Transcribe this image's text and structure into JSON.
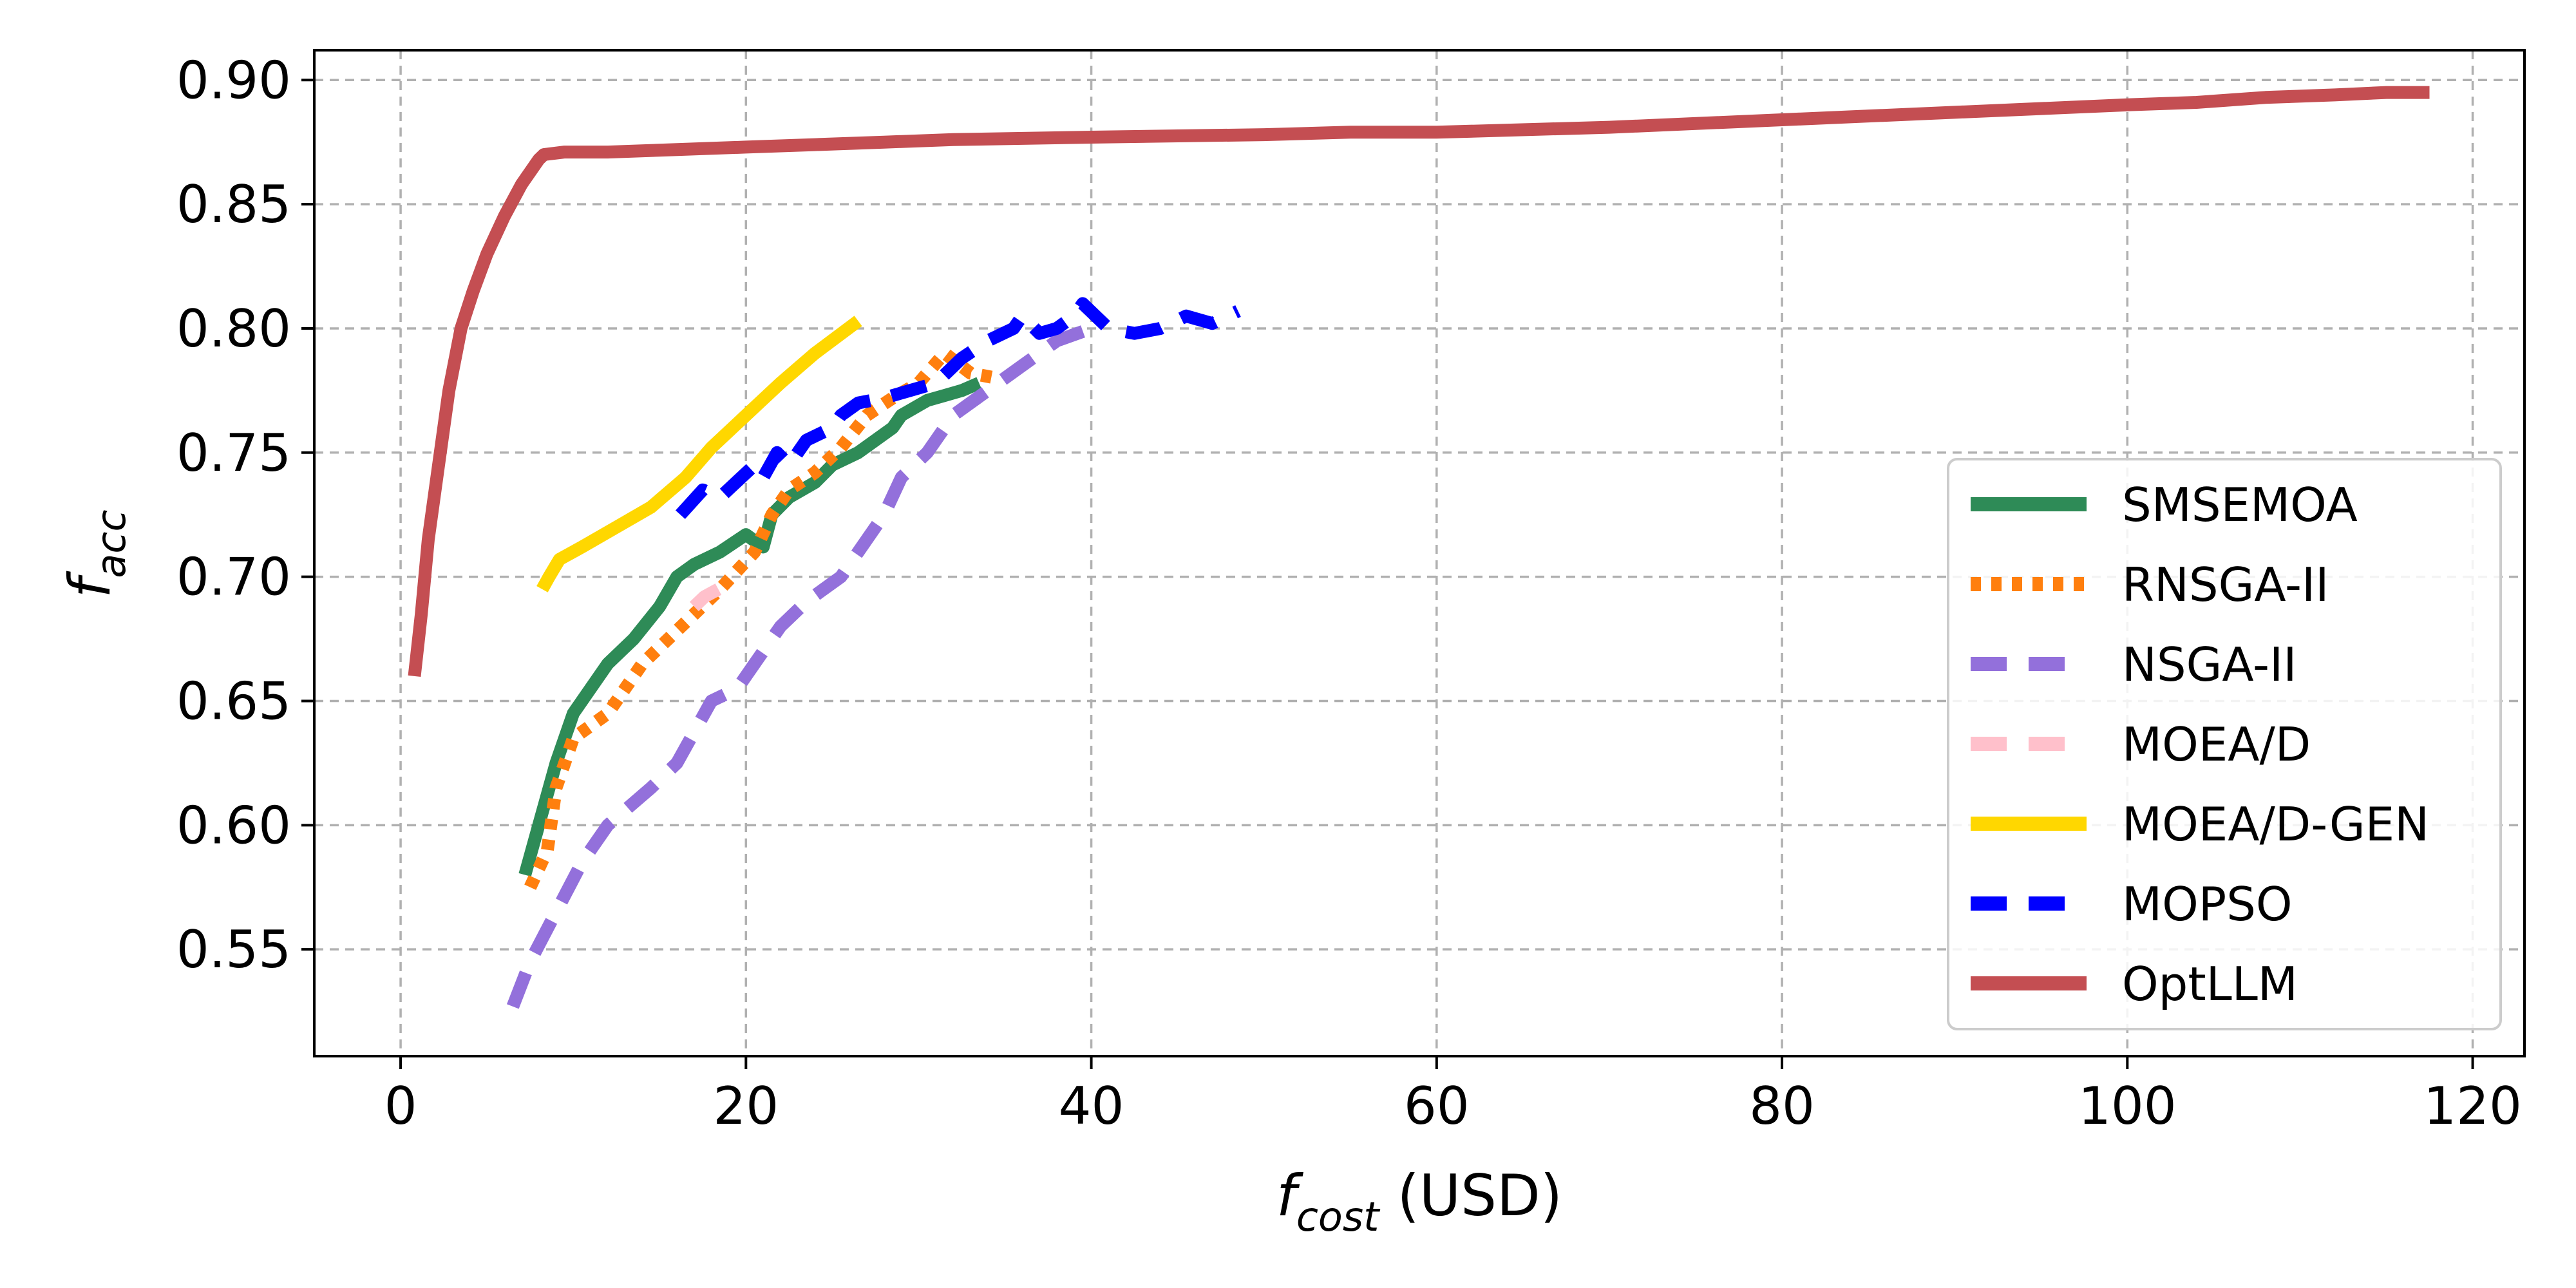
{
  "chart_data": {
    "type": "line",
    "xlabel": {
      "main": "f",
      "sub": "cost",
      "unit": " (USD)"
    },
    "ylabel": {
      "main": "f",
      "sub": "acc"
    },
    "xlim": [
      -5,
      123
    ],
    "ylim": [
      0.507,
      0.912
    ],
    "x_ticks": [
      0,
      20,
      40,
      60,
      80,
      100,
      120
    ],
    "y_ticks": [
      0.55,
      0.6,
      0.65,
      0.7,
      0.75,
      0.8,
      0.85,
      0.9
    ],
    "x_tick_labels": [
      "0",
      "20",
      "40",
      "60",
      "80",
      "100",
      "120"
    ],
    "y_tick_labels": [
      "0.55",
      "0.60",
      "0.65",
      "0.70",
      "0.75",
      "0.80",
      "0.85",
      "0.90"
    ],
    "grid": true,
    "legend_position": "lower-right",
    "series": [
      {
        "name": "SMSEMOA",
        "color": "#2e8b57",
        "style": "solid",
        "x": [
          7.2,
          7.6,
          8.2,
          9.0,
          10.0,
          12.0,
          13.5,
          15.0,
          16.0,
          17.0,
          18.5,
          20.0,
          21.0,
          21.5,
          22.5,
          24.0,
          25.0,
          26.5,
          27.5,
          28.5,
          29.0,
          30.5,
          31.5,
          32.5,
          33.5
        ],
        "y": [
          0.58,
          0.59,
          0.605,
          0.625,
          0.645,
          0.665,
          0.675,
          0.688,
          0.7,
          0.705,
          0.71,
          0.717,
          0.712,
          0.725,
          0.732,
          0.738,
          0.745,
          0.75,
          0.755,
          0.76,
          0.765,
          0.771,
          0.773,
          0.775,
          0.778
        ]
      },
      {
        "name": "RNSGA-II",
        "color": "#ff7f0e",
        "style": "dotted",
        "x": [
          7.5,
          8.5,
          9.0,
          10.0,
          12.0,
          13.0,
          14.0,
          15.5,
          17.0,
          18.5,
          20.5,
          21.5,
          22.5,
          24.0,
          25.5,
          27.0,
          28.5,
          30.0,
          31.5,
          33.0,
          34.5
        ],
        "y": [
          0.575,
          0.59,
          0.615,
          0.635,
          0.645,
          0.655,
          0.665,
          0.675,
          0.685,
          0.695,
          0.71,
          0.725,
          0.735,
          0.742,
          0.752,
          0.765,
          0.772,
          0.778,
          0.79,
          0.782,
          0.78
        ]
      },
      {
        "name": "NSGA-II",
        "color": "#9370db",
        "style": "dashed",
        "x": [
          6.5,
          7.5,
          9.0,
          10.5,
          12.0,
          14.5,
          16.0,
          18.0,
          19.5,
          20.5,
          22.0,
          23.5,
          24.5,
          25.5,
          26.5,
          28.0,
          29.0,
          30.5,
          32.0,
          34.0,
          36.0,
          38.0,
          40.0
        ],
        "y": [
          0.527,
          0.545,
          0.565,
          0.585,
          0.6,
          0.615,
          0.625,
          0.65,
          0.655,
          0.665,
          0.68,
          0.69,
          0.695,
          0.7,
          0.71,
          0.725,
          0.74,
          0.75,
          0.765,
          0.775,
          0.785,
          0.795,
          0.8
        ]
      },
      {
        "name": "MOEA/D",
        "color": "#ffc0cb",
        "style": "dashed",
        "x": [
          17.0,
          17.6,
          18.4
        ],
        "y": [
          0.688,
          0.692,
          0.695
        ]
      },
      {
        "name": "MOEA/D-GEN",
        "color": "#ffd700",
        "style": "solid",
        "x": [
          8.2,
          8.6,
          9.2,
          10.5,
          12.5,
          14.5,
          16.5,
          18.0,
          20.0,
          22.0,
          24.0,
          26.5
        ],
        "y": [
          0.695,
          0.7,
          0.707,
          0.712,
          0.72,
          0.728,
          0.74,
          0.752,
          0.765,
          0.778,
          0.79,
          0.803
        ]
      },
      {
        "name": "MOPSO",
        "color": "#0000ff",
        "style": "dashed",
        "x": [
          16.2,
          17.5,
          18.5,
          20.5,
          21.0,
          21.8,
          22.5,
          23.5,
          25.0,
          25.5,
          26.5,
          28.0,
          29.5,
          31.0,
          32.5,
          34.0,
          35.5,
          36.0,
          37.0,
          38.0,
          39.0,
          39.5,
          41.0,
          42.5,
          44.0,
          45.5,
          47.0,
          48.5
        ],
        "y": [
          0.725,
          0.735,
          0.732,
          0.745,
          0.74,
          0.75,
          0.745,
          0.755,
          0.76,
          0.765,
          0.77,
          0.772,
          0.775,
          0.778,
          0.788,
          0.795,
          0.8,
          0.805,
          0.798,
          0.8,
          0.805,
          0.81,
          0.8,
          0.798,
          0.8,
          0.805,
          0.802,
          0.807
        ]
      },
      {
        "name": "OptLLM",
        "color": "#c44e52",
        "style": "solid",
        "x": [
          0.8,
          1.2,
          1.6,
          2.2,
          2.8,
          3.5,
          4.2,
          5.0,
          6.0,
          7.0,
          8.0,
          8.3,
          9.5,
          12.0,
          16.0,
          20.0,
          24.0,
          28.0,
          32.0,
          40.0,
          50.0,
          55.0,
          60.0,
          70.0,
          80.0,
          90.0,
          100.0,
          104.0,
          108.0,
          112.0,
          115.0,
          117.5
        ],
        "y": [
          0.66,
          0.685,
          0.715,
          0.745,
          0.775,
          0.8,
          0.815,
          0.83,
          0.845,
          0.858,
          0.868,
          0.87,
          0.871,
          0.871,
          0.872,
          0.873,
          0.874,
          0.875,
          0.876,
          0.877,
          0.878,
          0.879,
          0.879,
          0.881,
          0.884,
          0.887,
          0.89,
          0.891,
          0.893,
          0.894,
          0.895,
          0.895
        ]
      }
    ]
  }
}
